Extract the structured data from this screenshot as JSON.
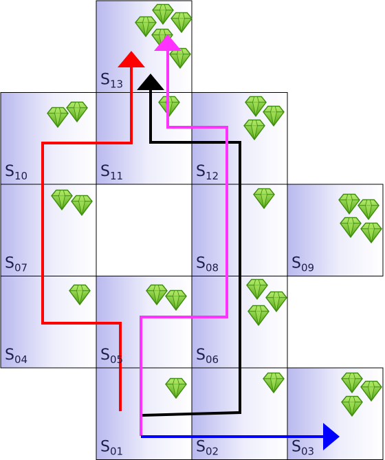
{
  "cells": [
    {
      "id": "s01",
      "label": "S",
      "sub": "01",
      "gems": 1
    },
    {
      "id": "s02",
      "label": "S",
      "sub": "02",
      "gems": 1
    },
    {
      "id": "s03",
      "label": "S",
      "sub": "03",
      "gems": 3
    },
    {
      "id": "s04",
      "label": "S",
      "sub": "04",
      "gems": 1
    },
    {
      "id": "s05",
      "label": "S",
      "sub": "05",
      "gems": 2
    },
    {
      "id": "s06",
      "label": "S",
      "sub": "06",
      "gems": 3
    },
    {
      "id": "s07",
      "label": "S",
      "sub": "07",
      "gems": 2
    },
    {
      "id": "s08",
      "label": "S",
      "sub": "08",
      "gems": 1
    },
    {
      "id": "s09",
      "label": "S",
      "sub": "09",
      "gems": 4
    },
    {
      "id": "s10",
      "label": "S",
      "sub": "10",
      "gems": 2
    },
    {
      "id": "s11",
      "label": "S",
      "sub": "11",
      "gems": 1
    },
    {
      "id": "s12",
      "label": "S",
      "sub": "12",
      "gems": 3
    },
    {
      "id": "s13",
      "label": "S",
      "sub": "13",
      "gems": 5
    }
  ],
  "paths": [
    {
      "id": "red",
      "color": "#ff0000",
      "route": [
        "s01",
        "s05",
        "s04",
        "s07",
        "s10",
        "s11",
        "s13"
      ]
    },
    {
      "id": "black",
      "color": "#000000",
      "route": [
        "s01",
        "s02",
        "s06",
        "s08",
        "s12",
        "s11",
        "s13"
      ]
    },
    {
      "id": "magenta",
      "color": "#ff33ff",
      "route": [
        "s01",
        "s05",
        "s06",
        "s08",
        "s12",
        "s11",
        "s13"
      ]
    },
    {
      "id": "blue",
      "color": "#0000ff",
      "route": [
        "s01",
        "s02",
        "s03"
      ]
    }
  ],
  "colors": {
    "cell_edge": "#b9b9ef",
    "cell_center": "#ffffff",
    "gem_light": "#a5e35a",
    "gem_mid": "#6cc51b",
    "gem_dark": "#3e8a0e"
  }
}
